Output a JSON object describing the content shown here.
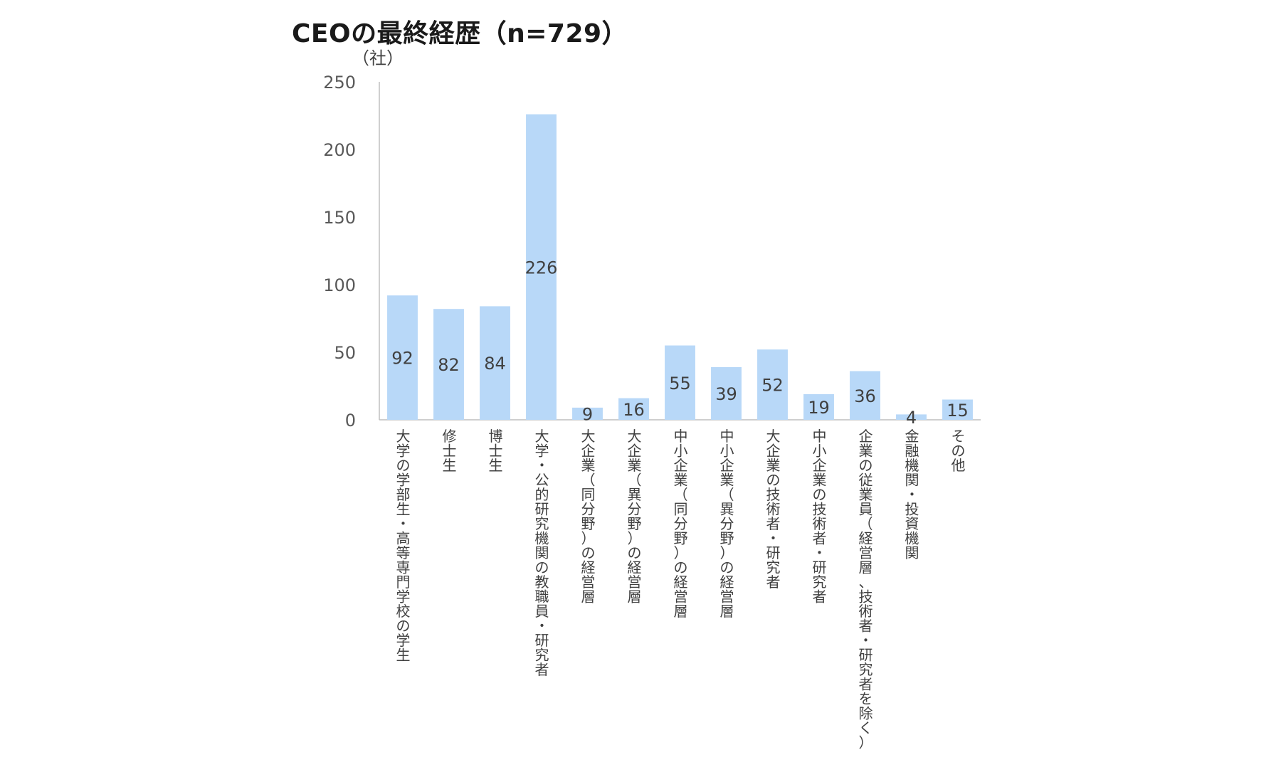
{
  "chart_data": {
    "type": "bar",
    "title": "CEOの最終経歴（n=729）",
    "ylabel": "（社）",
    "xlabel": "",
    "ylim": [
      0,
      250
    ],
    "yticks": [
      0,
      50,
      100,
      150,
      200,
      250
    ],
    "grid": false,
    "categories": [
      "大学の学部生・高等専門学校の学生",
      "修士生",
      "博士生",
      "大学・公的研究機関の教職員・研究者",
      "大企業（同分野）の経営層",
      "大企業（異分野）の経営層",
      "中小企業（同分野）の経営層",
      "中小企業（異分野）の経営層",
      "大企業の技術者・研究者",
      "中小企業の技術者・研究者",
      "企業の従業員（経営層、技術者・研究者を除く）",
      "金融機関・投資機関",
      "その他"
    ],
    "values": [
      92,
      82,
      84,
      226,
      9,
      16,
      55,
      39,
      52,
      19,
      36,
      4,
      15
    ],
    "colors": {
      "bar": "#b8d8f8"
    }
  }
}
